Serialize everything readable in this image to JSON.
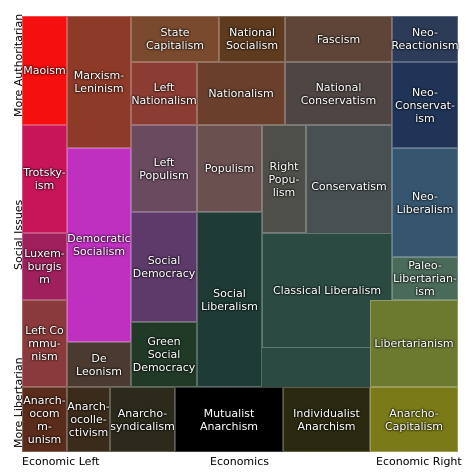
{
  "axes": {
    "left_top": "More Authoritarian",
    "left_middle": "Social Issues",
    "left_bottom": "More Libertarian",
    "bottom_left": "Economic Left",
    "bottom_middle": "Economics",
    "bottom_right": "Economic Right"
  },
  "nodes": [
    {
      "label": "Maoism"
    },
    {
      "label": "Marxism-\nLeninism"
    },
    {
      "label": "State Capitalism"
    },
    {
      "label": "National\nSocialism"
    },
    {
      "label": "Fascism"
    },
    {
      "label": "Neo-\nReactionism"
    },
    {
      "label": "Left\nNationalism"
    },
    {
      "label": "Nationalism"
    },
    {
      "label": "National\nConservatism"
    },
    {
      "label": "Neo-\nConservat-\nism"
    },
    {
      "label": "Trotsky-\nism"
    },
    {
      "label": "Left\nPopulism"
    },
    {
      "label": "Populism"
    },
    {
      "label": "Right\nPopu-\nlism"
    },
    {
      "label": "Conservatism"
    },
    {
      "label": "Neo-\nLiberalism"
    },
    {
      "label": "Democratic\nSocialism"
    },
    {
      "label": "Luxem-\nburgis\nm"
    },
    {
      "label": "Social\nDemocracy"
    },
    {
      "label": "Social\nLiberalism"
    },
    {
      "label": "Classical Liberalism"
    },
    {
      "label": "Paleo-\nLibertarian-\nism"
    },
    {
      "label": "Libertarianism"
    },
    {
      "label": "Left Co\nmmu-\nnism"
    },
    {
      "label": "De Leonism"
    },
    {
      "label": "Green Social\nDemocracy"
    },
    {
      "label": "Anarch-\nocom\nm-\nunism"
    },
    {
      "label": "Anarch-\nocolle-\nctivism"
    },
    {
      "label": "Anarcho-\nsyndicalism"
    },
    {
      "label": "Mutualist Anarchism"
    },
    {
      "label": "Individualist\nAnarchism"
    },
    {
      "label": "Anarcho-\nCapitalism"
    }
  ]
}
